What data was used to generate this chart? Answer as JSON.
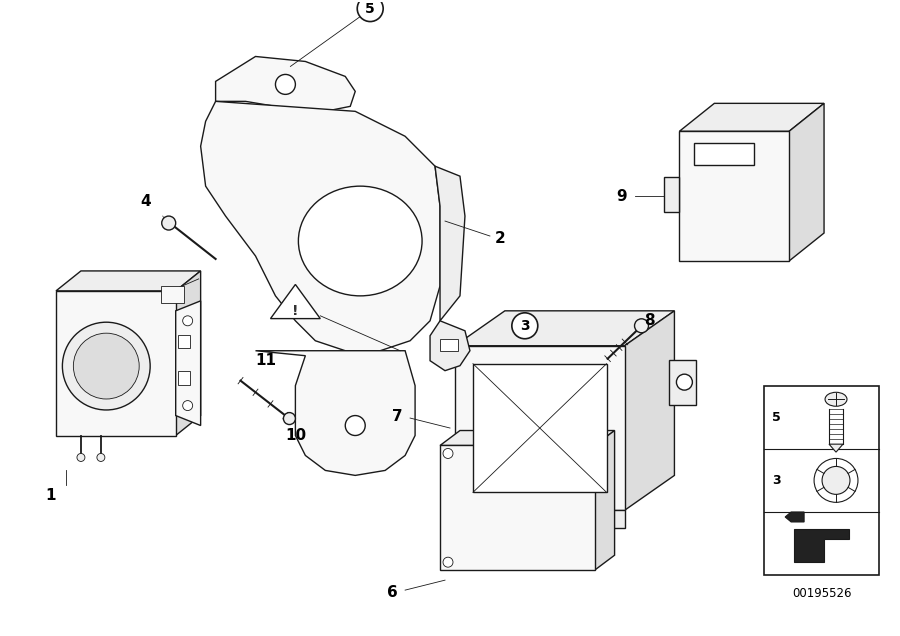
{
  "background_color": "#ffffff",
  "line_color": "#1a1a1a",
  "ref_num": "00195526",
  "fig_width": 9.0,
  "fig_height": 6.36,
  "dpi": 100,
  "lw_main": 1.0,
  "lw_thin": 0.6,
  "face_light": "#f8f8f8",
  "face_mid": "#eeeeee",
  "face_dark": "#dddddd",
  "face_white": "#ffffff"
}
